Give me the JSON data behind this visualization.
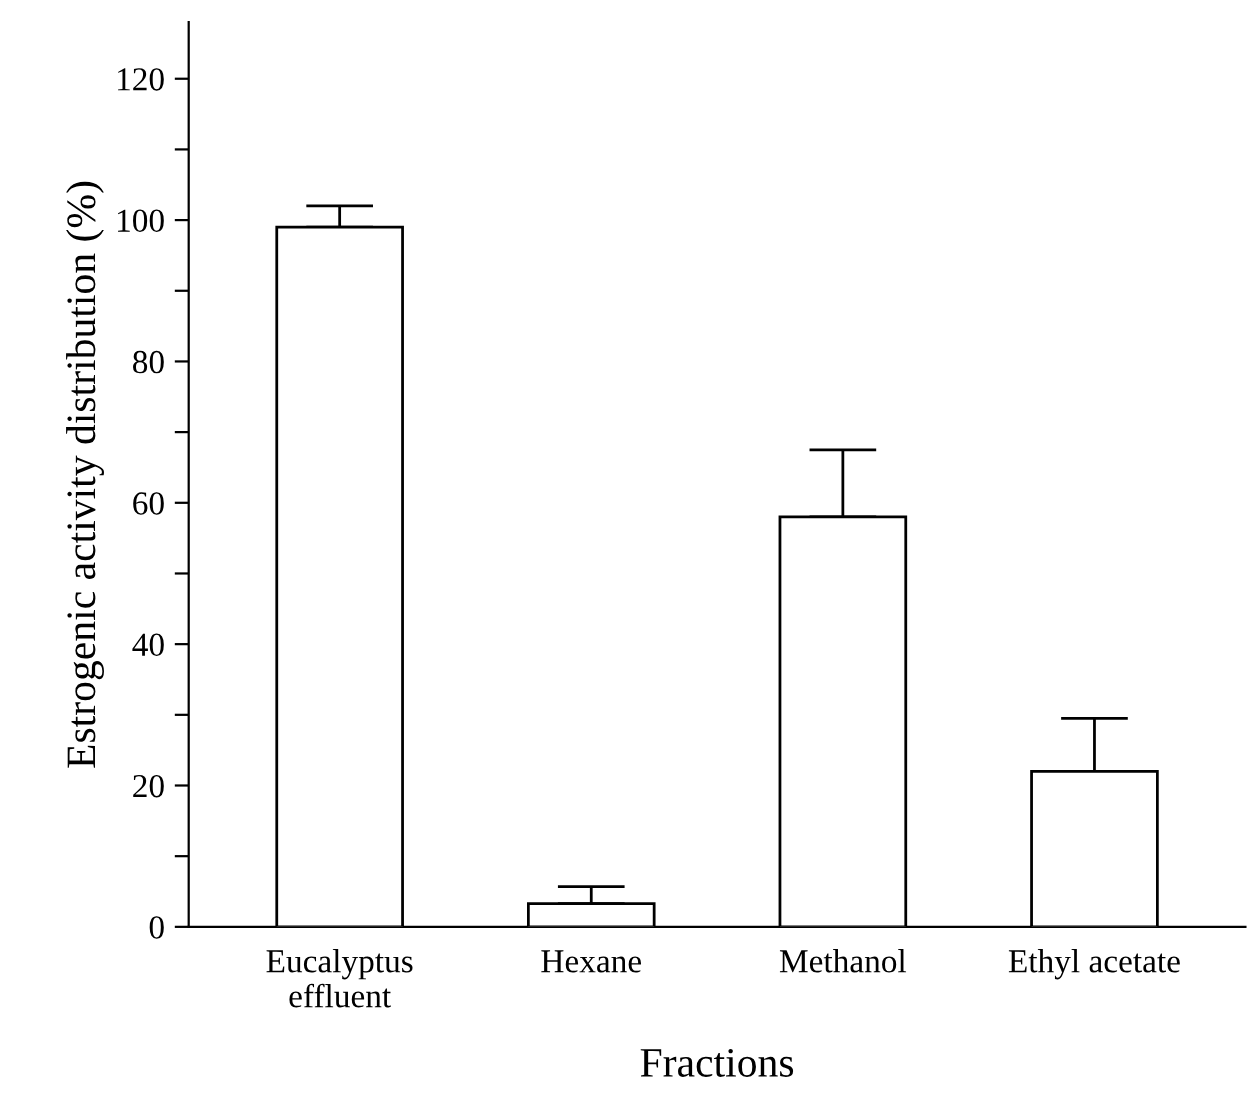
{
  "chart_data": {
    "type": "bar",
    "xlabel": "Fractions",
    "ylabel": "Estrogenic activity distribution (%)",
    "categories": [
      "Eucalyptus\neffluent",
      "Hexane",
      "Methanol",
      "Ethyl acetate"
    ],
    "series": [
      {
        "color": "#ffffff",
        "values": [
          99,
          3.3,
          58,
          22
        ],
        "errors": [
          [
            99,
            102
          ],
          [
            3.3,
            5.7
          ],
          [
            58,
            67.5
          ],
          [
            22,
            29.5
          ]
        ]
      }
    ],
    "ylim": [
      0,
      128
    ],
    "yticks": [
      0,
      {
        "value": 10,
        "label": null
      },
      20,
      {
        "value": 30,
        "label": null
      },
      40,
      {
        "value": 50,
        "label": null
      },
      60,
      {
        "value": 70,
        "label": null
      },
      80,
      {
        "value": 90,
        "label": null
      },
      100,
      {
        "value": 110,
        "label": null
      },
      120
    ],
    "grid": false,
    "legend": false
  }
}
